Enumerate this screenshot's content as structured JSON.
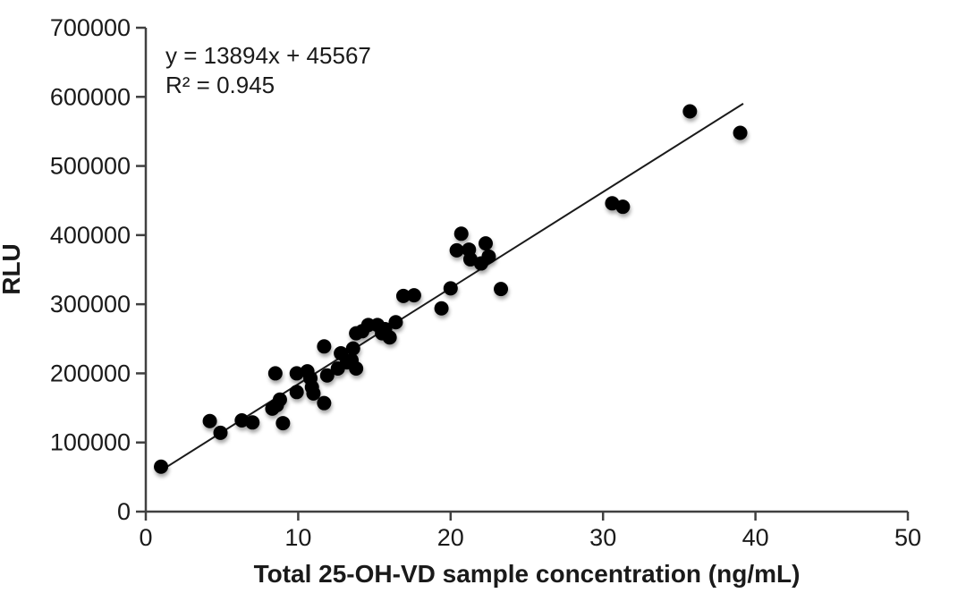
{
  "figure": {
    "background": "#ffffff",
    "annotation": {
      "equation": "y = 13894x + 45567",
      "r_squared": "R² = 0.945"
    }
  },
  "chart_data": {
    "type": "scatter",
    "title": "",
    "xlabel": "Total 25-OH-VD sample concentration (ng/mL)",
    "ylabel": "RLU",
    "xlim": [
      0,
      50
    ],
    "ylim": [
      0,
      700000
    ],
    "x_ticks": [
      0,
      10,
      20,
      30,
      40,
      50
    ],
    "y_ticks": [
      0,
      100000,
      200000,
      300000,
      400000,
      500000,
      600000,
      700000
    ],
    "grid": false,
    "legend": "none",
    "marker_color": "#000000",
    "axis_color": "#404040",
    "trendline_color": "#1a1a1a",
    "points": [
      [
        1.0,
        65000
      ],
      [
        4.2,
        131000
      ],
      [
        4.9,
        114000
      ],
      [
        6.3,
        132000
      ],
      [
        7.0,
        129000
      ],
      [
        8.3,
        149000
      ],
      [
        8.5,
        200000
      ],
      [
        8.6,
        154000
      ],
      [
        8.8,
        162000
      ],
      [
        9.0,
        128000
      ],
      [
        9.9,
        200000
      ],
      [
        9.9,
        173000
      ],
      [
        10.6,
        203000
      ],
      [
        10.8,
        193000
      ],
      [
        10.9,
        180000
      ],
      [
        11.0,
        171000
      ],
      [
        11.7,
        239000
      ],
      [
        11.7,
        157000
      ],
      [
        11.9,
        197000
      ],
      [
        12.6,
        207000
      ],
      [
        12.8,
        229000
      ],
      [
        13.2,
        216000
      ],
      [
        13.5,
        219000
      ],
      [
        13.6,
        236000
      ],
      [
        13.8,
        258000
      ],
      [
        13.8,
        207000
      ],
      [
        14.2,
        261000
      ],
      [
        14.6,
        270000
      ],
      [
        15.2,
        270000
      ],
      [
        15.5,
        258000
      ],
      [
        15.7,
        264000
      ],
      [
        16.0,
        252000
      ],
      [
        16.4,
        274000
      ],
      [
        16.9,
        312000
      ],
      [
        17.6,
        313000
      ],
      [
        19.4,
        294000
      ],
      [
        20.0,
        323000
      ],
      [
        20.4,
        378000
      ],
      [
        20.7,
        402000
      ],
      [
        21.2,
        379000
      ],
      [
        21.3,
        365000
      ],
      [
        22.0,
        359000
      ],
      [
        22.3,
        388000
      ],
      [
        22.5,
        369000
      ],
      [
        23.3,
        322000
      ],
      [
        30.6,
        446000
      ],
      [
        31.3,
        441000
      ],
      [
        35.7,
        579000
      ],
      [
        39.0,
        548000
      ]
    ],
    "trendline": {
      "type": "linear",
      "slope": 13894,
      "intercept": 45567,
      "r2": 0.945,
      "x_start": 1.0,
      "x_end": 39.2
    }
  }
}
